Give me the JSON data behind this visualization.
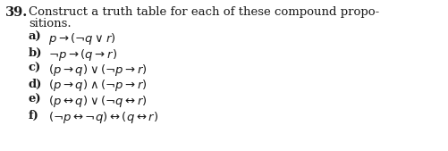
{
  "number": "39.",
  "intro_line1": "Construct a truth table for each of these compound propo-",
  "intro_line2": "sitions.",
  "items": [
    {
      "label": "a)",
      "formula": "$p \\rightarrow (\\neg q \\vee r)$"
    },
    {
      "label": "b)",
      "formula": "$\\neg p \\rightarrow (q \\rightarrow r)$"
    },
    {
      "label": "c)",
      "formula": "$(p \\rightarrow q) \\vee (\\neg p \\rightarrow r)$"
    },
    {
      "label": "d)",
      "formula": "$(p \\rightarrow q) \\wedge (\\neg p \\rightarrow r)$"
    },
    {
      "label": "e)",
      "formula": "$(p \\leftrightarrow q) \\vee (\\neg q \\leftrightarrow r)$"
    },
    {
      "label": "f)",
      "formula": "$(\\neg p \\leftrightarrow \\neg q) \\leftrightarrow (q \\leftrightarrow r)$"
    }
  ],
  "bg_color": "#ffffff",
  "text_color": "#1a1a1a",
  "number_fontsize": 10.5,
  "intro_fontsize": 9.5,
  "item_fontsize": 9.5,
  "label_fontsize": 9.5,
  "fig_width": 5.02,
  "fig_height": 1.69,
  "dpi": 100
}
